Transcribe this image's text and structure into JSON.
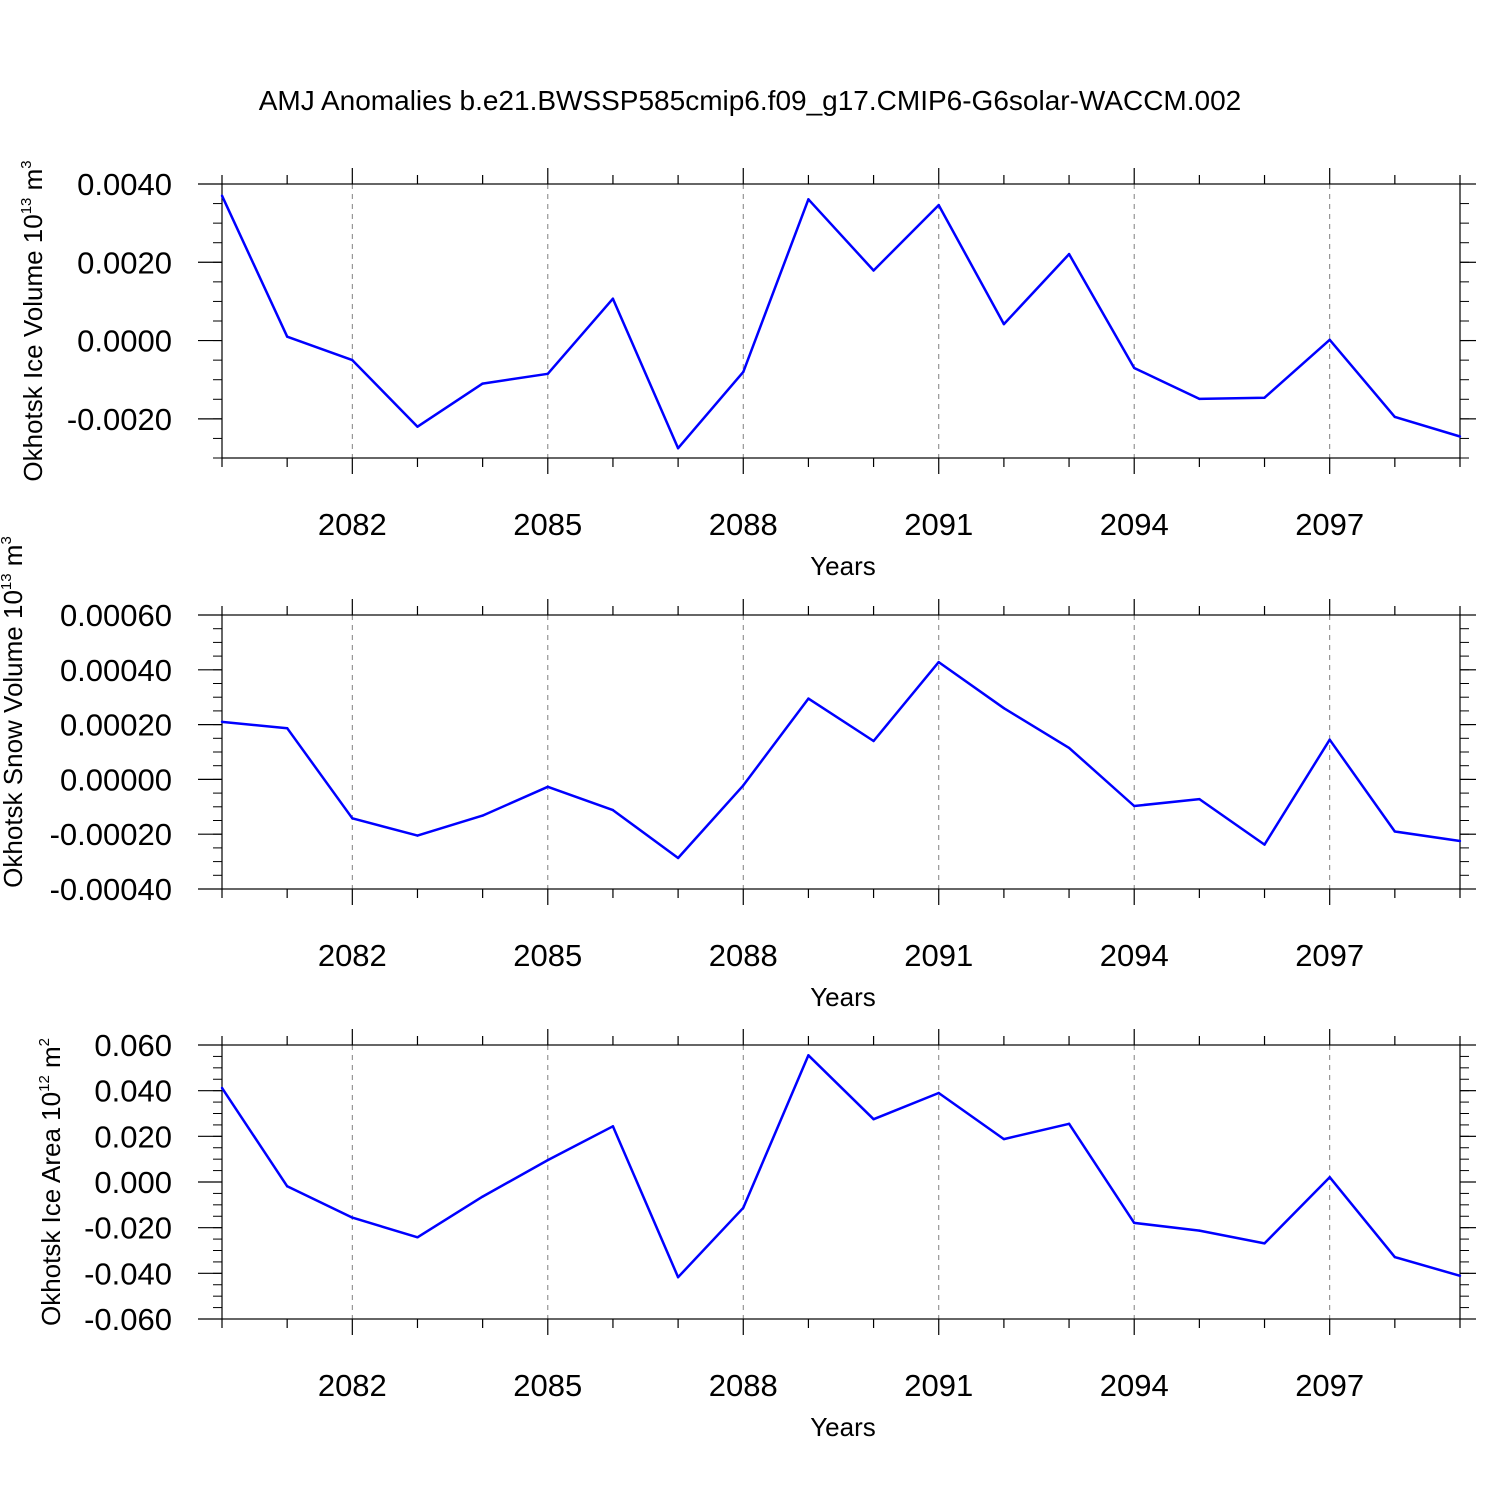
{
  "title": "AMJ Anomalies b.e21.BWSSP585cmip6.f09_g17.CMIP6-G6solar-WACCM.002",
  "colors": {
    "line": "#0000ff",
    "axis": "#000000",
    "grid": "#808080"
  },
  "chart_data": [
    {
      "type": "line",
      "name": "ice-volume",
      "ylabel": {
        "main": "Okhotsk Ice Volume 10",
        "exp": "13",
        "unit": " m",
        "unit_exp": "3"
      },
      "xlabel": "Years",
      "x": [
        2080,
        2081,
        2082,
        2083,
        2084,
        2085,
        2086,
        2087,
        2088,
        2089,
        2090,
        2091,
        2092,
        2093,
        2094,
        2095,
        2096,
        2097,
        2098,
        2099
      ],
      "values": [
        0.0037,
        0.0001,
        -0.0005,
        -0.0022,
        -0.0011,
        -0.00085,
        0.00107,
        -0.00275,
        -0.0008,
        0.00361,
        0.00179,
        0.00346,
        0.00042,
        0.00221,
        -0.0007,
        -0.00149,
        -0.00146,
        2e-05,
        -0.00195,
        -0.00245
      ],
      "xlim": [
        2080,
        2099
      ],
      "ylim": [
        -0.003,
        0.004
      ],
      "xticks": [
        2082,
        2085,
        2088,
        2091,
        2094,
        2097
      ],
      "xtick_labels": [
        "2082",
        "2085",
        "2088",
        "2091",
        "2094",
        "2097"
      ],
      "yticks": [
        0.004,
        0.002,
        0,
        -0.002
      ],
      "ytick_labels": [
        "0.0040",
        "0.0020",
        "0.0000",
        "-0.0020"
      ],
      "yminor_step": 0.0005
    },
    {
      "type": "line",
      "name": "snow-volume",
      "ylabel": {
        "main": "Okhotsk Snow Volume 10",
        "exp": "13",
        "unit": " m",
        "unit_exp": "3"
      },
      "xlabel": "Years",
      "x": [
        2080,
        2081,
        2082,
        2083,
        2084,
        2085,
        2086,
        2087,
        2088,
        2089,
        2090,
        2091,
        2092,
        2093,
        2094,
        2095,
        2096,
        2097,
        2098,
        2099
      ],
      "values": [
        0.00021,
        0.000187,
        -0.000142,
        -0.000205,
        -0.000132,
        -2.7e-05,
        -0.000112,
        -0.000287,
        -2.2e-05,
        0.000295,
        0.00014,
        0.000428,
        0.00026,
        0.000115,
        -9.7e-05,
        -7.2e-05,
        -0.000238,
        0.000145,
        -0.00019,
        -0.000225
      ],
      "xlim": [
        2080,
        2099
      ],
      "ylim": [
        -0.0004,
        0.0006
      ],
      "xticks": [
        2082,
        2085,
        2088,
        2091,
        2094,
        2097
      ],
      "xtick_labels": [
        "2082",
        "2085",
        "2088",
        "2091",
        "2094",
        "2097"
      ],
      "yticks": [
        0.0006,
        0.0004,
        0.0002,
        0,
        -0.0002,
        -0.0004
      ],
      "ytick_labels": [
        "0.00060",
        "0.00040",
        "0.00020",
        "0.00000",
        "-0.00020",
        "-0.00040"
      ],
      "yminor_step": 5e-05
    },
    {
      "type": "line",
      "name": "ice-area",
      "ylabel": {
        "main": "Okhotsk Ice Area 10",
        "exp": "12",
        "unit": " m",
        "unit_exp": "2"
      },
      "xlabel": "Years",
      "x": [
        2080,
        2081,
        2082,
        2083,
        2084,
        2085,
        2086,
        2087,
        2088,
        2089,
        2090,
        2091,
        2092,
        2093,
        2094,
        2095,
        2096,
        2097,
        2098,
        2099
      ],
      "values": [
        0.0412,
        -0.0019,
        -0.0156,
        -0.0242,
        -0.0064,
        0.0096,
        0.0244,
        -0.0417,
        -0.0113,
        0.0555,
        0.0275,
        0.039,
        0.0188,
        0.0255,
        -0.0179,
        -0.0213,
        -0.0269,
        0.0021,
        -0.0329,
        -0.0411
      ],
      "xlim": [
        2080,
        2099
      ],
      "ylim": [
        -0.06,
        0.06
      ],
      "xticks": [
        2082,
        2085,
        2088,
        2091,
        2094,
        2097
      ],
      "xtick_labels": [
        "2082",
        "2085",
        "2088",
        "2091",
        "2094",
        "2097"
      ],
      "yticks": [
        0.06,
        0.04,
        0.02,
        0,
        -0.02,
        -0.04,
        -0.06
      ],
      "ytick_labels": [
        "0.060",
        "0.040",
        "0.020",
        "0.000",
        "-0.020",
        "-0.040",
        "-0.060"
      ],
      "yminor_step": 0.005
    }
  ]
}
